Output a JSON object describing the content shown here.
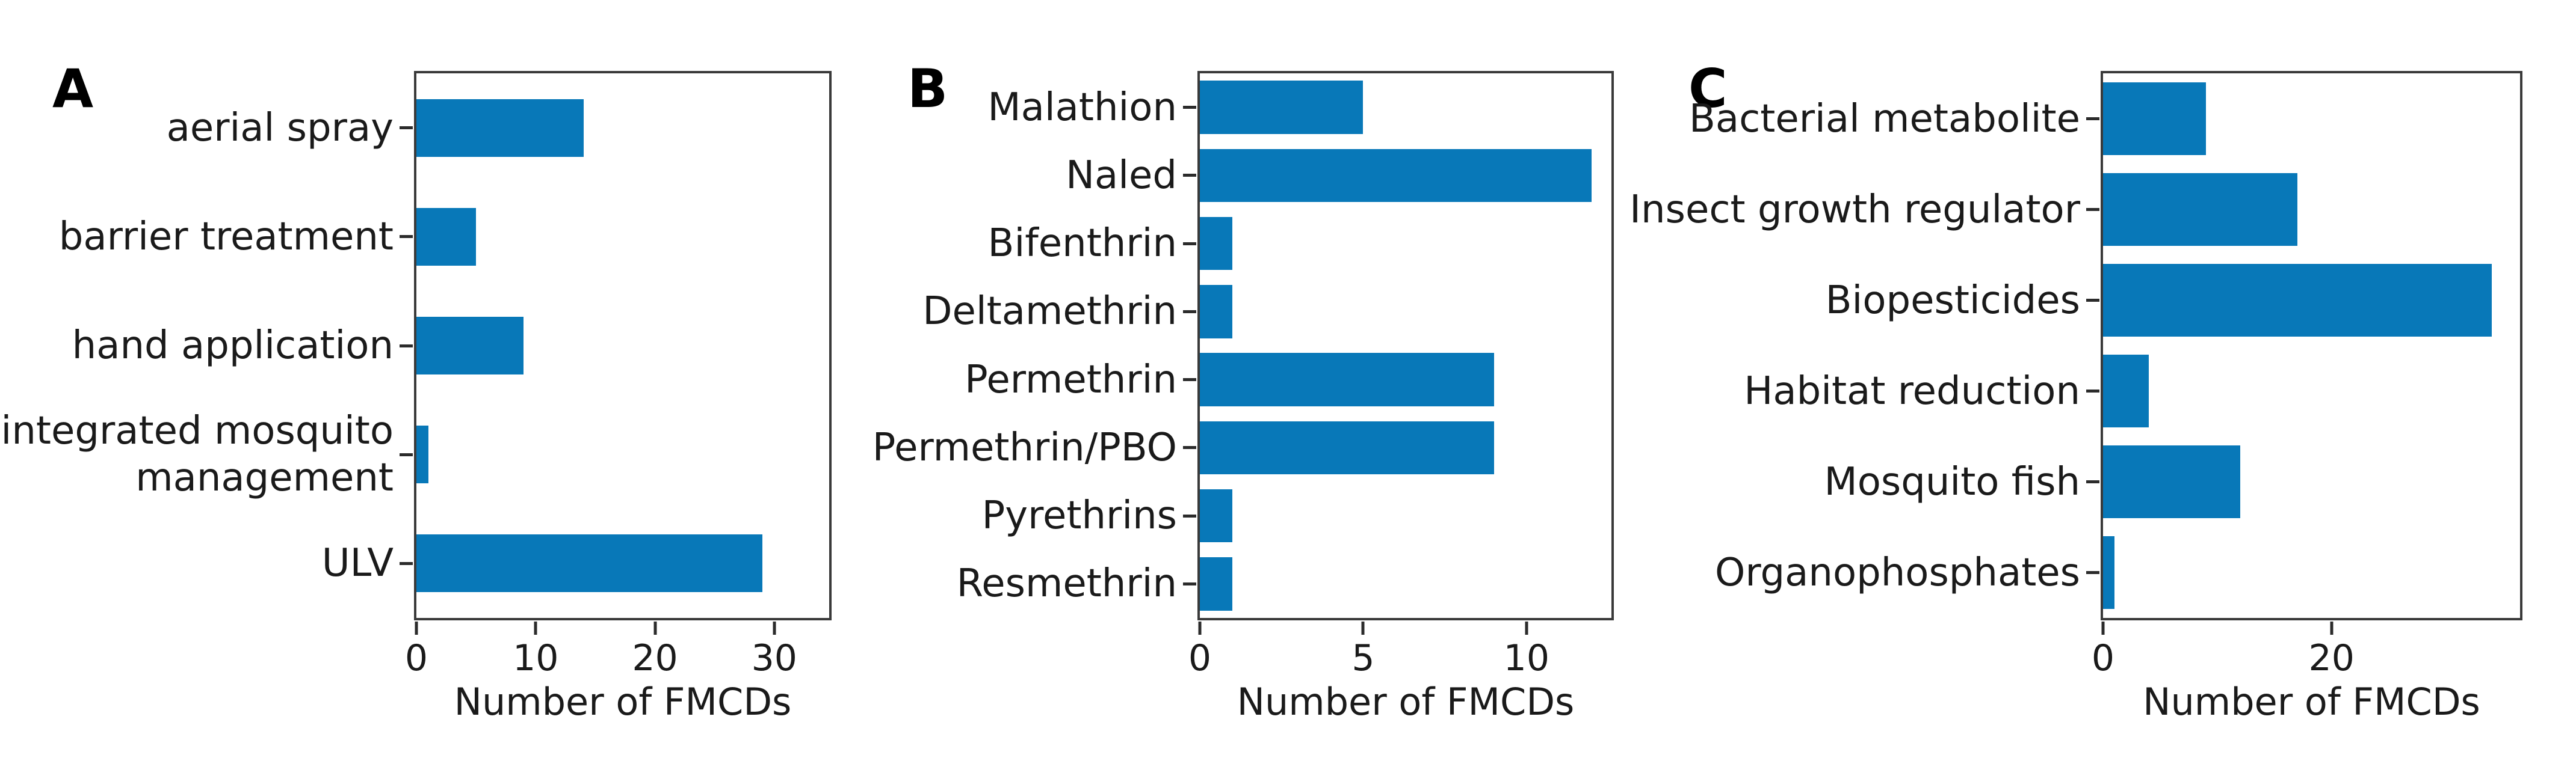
{
  "figure": {
    "bar_color": "#0878b8",
    "spine_color": "#3a3a3a",
    "axis_label": "Number of FMCDs"
  },
  "chart_data": [
    {
      "type": "bar",
      "orientation": "horizontal",
      "panel_label": "A",
      "categories": [
        "aerial spray",
        "barrier treatment",
        "hand application",
        "integrated mosquito\nmanagement",
        "ULV"
      ],
      "values": [
        14,
        5,
        9,
        1,
        29
      ],
      "xlabel": "Number of FMCDs",
      "ylabel": "",
      "xticks": [
        0,
        10,
        20,
        30
      ],
      "xlim": [
        0,
        34.6
      ],
      "bar_height_ratio": 0.53,
      "grid": false,
      "legend": false
    },
    {
      "type": "bar",
      "orientation": "horizontal",
      "panel_label": "B",
      "categories": [
        "Malathion",
        "Naled",
        "Bifenthrin",
        "Deltamethrin",
        "Permethrin",
        "Permethrin/PBO",
        "Pyrethrins",
        "Resmethrin"
      ],
      "values": [
        5,
        12,
        1,
        1,
        9,
        9,
        1,
        1
      ],
      "xlabel": "Number of FMCDs",
      "ylabel": "",
      "xticks": [
        0,
        5,
        10
      ],
      "xlim": [
        0,
        12.6
      ],
      "bar_height_ratio": 0.78,
      "grid": false,
      "legend": false
    },
    {
      "type": "bar",
      "orientation": "horizontal",
      "panel_label": "C",
      "categories": [
        "Bacterial metabolite",
        "Insect growth regulator",
        "Biopesticides",
        "Habitat reduction",
        "Mosquito fish",
        "Organophosphates"
      ],
      "values": [
        9,
        17,
        34,
        4,
        12,
        1
      ],
      "xlabel": "Number of FMCDs",
      "ylabel": "",
      "xticks": [
        0,
        20
      ],
      "xlim": [
        0,
        36.5
      ],
      "bar_height_ratio": 0.8,
      "grid": false,
      "legend": false
    }
  ]
}
